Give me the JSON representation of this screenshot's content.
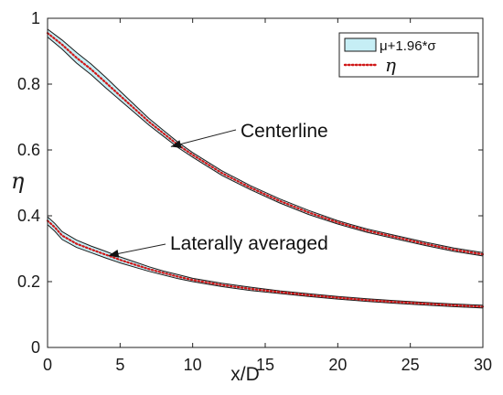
{
  "chart_data": {
    "type": "line",
    "title": "",
    "xlabel": "x/D",
    "ylabel": "η",
    "xlim": [
      0,
      30
    ],
    "ylim": [
      0,
      1
    ],
    "xticks": [
      "0",
      "5",
      "10",
      "15",
      "20",
      "25",
      "30"
    ],
    "yticks": [
      "0",
      "0.2",
      "0.4",
      "0.6",
      "0.8",
      "1"
    ],
    "legend": {
      "placement": "top-right",
      "entries": [
        {
          "label": "μ+1.96*σ",
          "style": "band",
          "fill": "#c6eef5",
          "edge": "#1a1a1a"
        },
        {
          "label": "η",
          "style": "dotted",
          "color": "#d01818"
        }
      ]
    },
    "series": [
      {
        "x": [
          0,
          1,
          2,
          3,
          4,
          5,
          6,
          7,
          8,
          9,
          10,
          12,
          14,
          16,
          18,
          20,
          22,
          24,
          26,
          28,
          30
        ],
        "y": [
          0.955,
          0.92,
          0.88,
          0.845,
          0.805,
          0.765,
          0.725,
          0.685,
          0.65,
          0.615,
          0.585,
          0.53,
          0.485,
          0.445,
          0.41,
          0.38,
          0.355,
          0.335,
          0.315,
          0.297,
          0.283
        ],
        "band_half_width": [
          0.012,
          0.014,
          0.016,
          0.016,
          0.016,
          0.014,
          0.012,
          0.01,
          0.009,
          0.008,
          0.007,
          0.007,
          0.006,
          0.006,
          0.006,
          0.005,
          0.005,
          0.005,
          0.005,
          0.005,
          0.005
        ]
      },
      {
        "x": [
          0,
          0.5,
          1,
          2,
          3,
          4,
          5,
          6,
          7,
          8,
          9,
          10,
          12,
          14,
          16,
          18,
          20,
          22,
          24,
          26,
          28,
          30
        ],
        "y": [
          0.385,
          0.365,
          0.34,
          0.315,
          0.298,
          0.282,
          0.266,
          0.252,
          0.238,
          0.226,
          0.215,
          0.205,
          0.19,
          0.178,
          0.168,
          0.159,
          0.151,
          0.144,
          0.138,
          0.133,
          0.128,
          0.124
        ],
        "band_half_width": [
          0.012,
          0.012,
          0.012,
          0.011,
          0.01,
          0.01,
          0.009,
          0.008,
          0.007,
          0.006,
          0.006,
          0.005,
          0.005,
          0.005,
          0.004,
          0.004,
          0.004,
          0.004,
          0.004,
          0.004,
          0.004,
          0.004
        ]
      }
    ],
    "annotations": [
      {
        "text": "Centerline",
        "arrow_to": [
          8.5,
          0.61
        ]
      },
      {
        "text": "Laterally averaged",
        "arrow_to": [
          4.2,
          0.279
        ]
      }
    ]
  }
}
